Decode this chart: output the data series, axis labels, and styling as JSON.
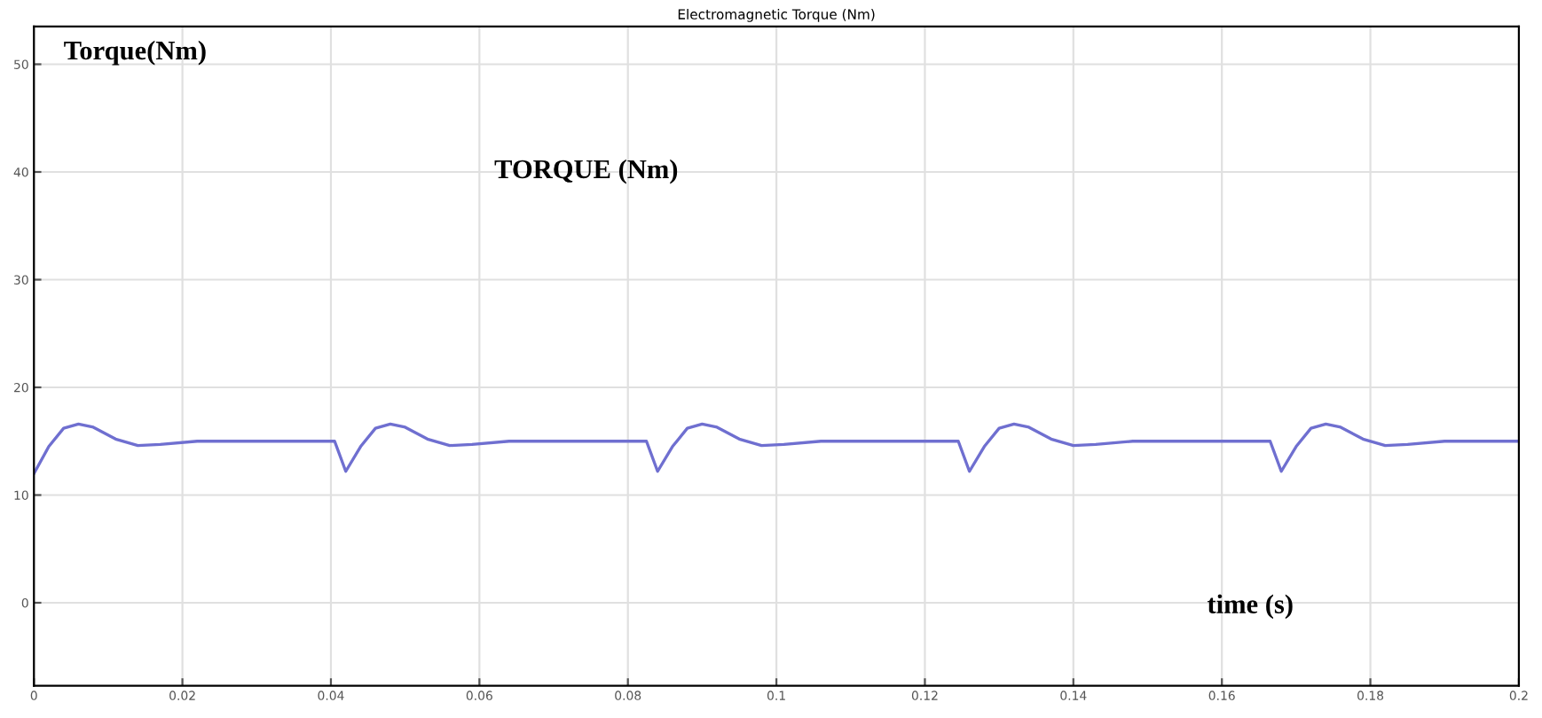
{
  "chart_data": {
    "type": "line",
    "title": "Electromagnetic Torque (Nm)",
    "annotations": [
      "Torque(Nm)",
      "TORQUE (Nm)",
      "time (s)"
    ],
    "series": [
      {
        "color": "#6f6fd0",
        "x": [
          0,
          0.002,
          0.004,
          0.006,
          0.008,
          0.011,
          0.014,
          0.017,
          0.022,
          0.032,
          0.0405,
          0.042,
          0.044,
          0.046,
          0.048,
          0.05,
          0.053,
          0.056,
          0.059,
          0.064,
          0.074,
          0.0825,
          0.084,
          0.086,
          0.088,
          0.09,
          0.092,
          0.095,
          0.098,
          0.101,
          0.106,
          0.116,
          0.1245,
          0.126,
          0.128,
          0.13,
          0.132,
          0.134,
          0.137,
          0.14,
          0.143,
          0.148,
          0.158,
          0.1665,
          0.168,
          0.17,
          0.172,
          0.174,
          0.176,
          0.179,
          0.182,
          0.185,
          0.19,
          0.2
        ],
        "values": [
          12.0,
          14.5,
          16.2,
          16.6,
          16.3,
          15.2,
          14.6,
          14.7,
          15.0,
          15.0,
          15.0,
          12.2,
          14.5,
          16.2,
          16.6,
          16.3,
          15.2,
          14.6,
          14.7,
          15.0,
          15.0,
          15.0,
          12.2,
          14.5,
          16.2,
          16.6,
          16.3,
          15.2,
          14.6,
          14.7,
          15.0,
          15.0,
          15.0,
          12.2,
          14.5,
          16.2,
          16.6,
          16.3,
          15.2,
          14.6,
          14.7,
          15.0,
          15.0,
          15.0,
          12.2,
          14.5,
          16.2,
          16.6,
          16.3,
          15.2,
          14.6,
          14.7,
          15.0,
          15.0
        ]
      }
    ],
    "xlim": [
      0,
      0.2
    ],
    "xticks": [
      0,
      0.02,
      0.04,
      0.06,
      0.08,
      0.1,
      0.12,
      0.14,
      0.16,
      0.18,
      0.2
    ],
    "ylim": [
      -7.7,
      53.5
    ],
    "yticks": [
      0,
      10,
      20,
      30,
      40,
      50
    ],
    "grid": true,
    "marker": "none",
    "line_style": "solid"
  }
}
